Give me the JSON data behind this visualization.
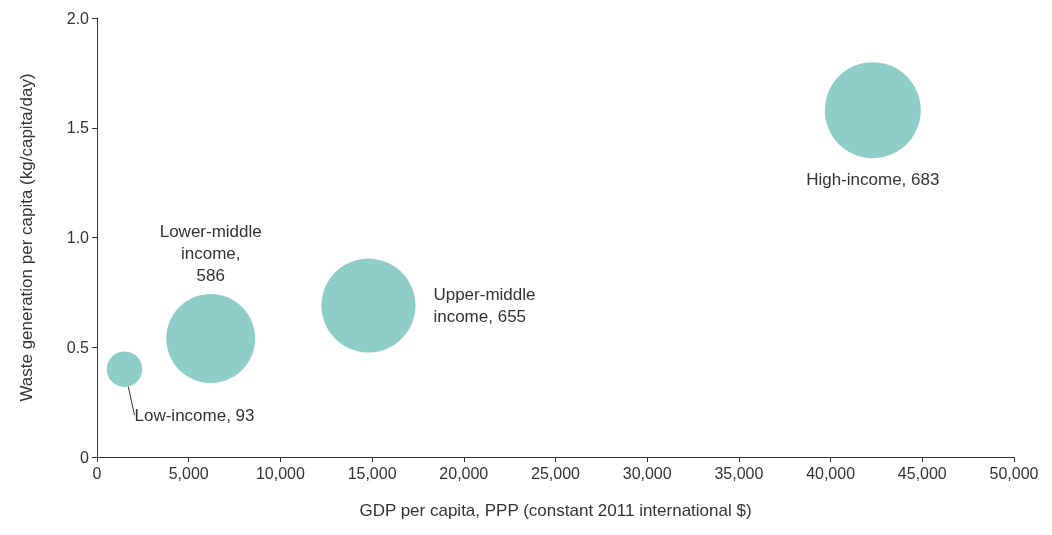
{
  "chart_data": {
    "type": "bubble",
    "xlabel": "GDP per capita, PPP (constant 2011 international $)",
    "ylabel": "Waste generation per capita (kg/capita/day)",
    "x": [
      1500,
      6200,
      14800,
      42300
    ],
    "values": [
      0.4,
      0.54,
      0.69,
      1.58
    ],
    "sizes": [
      93,
      586,
      655,
      683
    ],
    "value_labels": [
      "Low-income, 93",
      "Lower-middle\nincome,\n586",
      "Upper-middle\nincome, 655",
      "High-income, 683"
    ],
    "color": "#8ecdc8",
    "xlim": [
      0,
      50000
    ],
    "xticks": [
      0,
      {
        "value": 5000,
        "label": "5,000"
      },
      {
        "value": 10000,
        "label": "10,000"
      },
      {
        "value": 15000,
        "label": "15,000"
      },
      {
        "value": 20000,
        "label": "20,000"
      },
      {
        "value": 25000,
        "label": "25,000"
      },
      {
        "value": 30000,
        "label": "30,000"
      },
      {
        "value": 35000,
        "label": "35,000"
      },
      {
        "value": 40000,
        "label": "40,000"
      },
      {
        "value": 45000,
        "label": "45,000"
      },
      {
        "value": 50000,
        "label": "50,000"
      }
    ],
    "ylim": [
      0,
      2
    ],
    "yticks": [
      0,
      0.5,
      {
        "value": 1,
        "label": "1.0"
      },
      1.5,
      {
        "value": 2,
        "label": "2.0"
      }
    ],
    "grid": false
  }
}
